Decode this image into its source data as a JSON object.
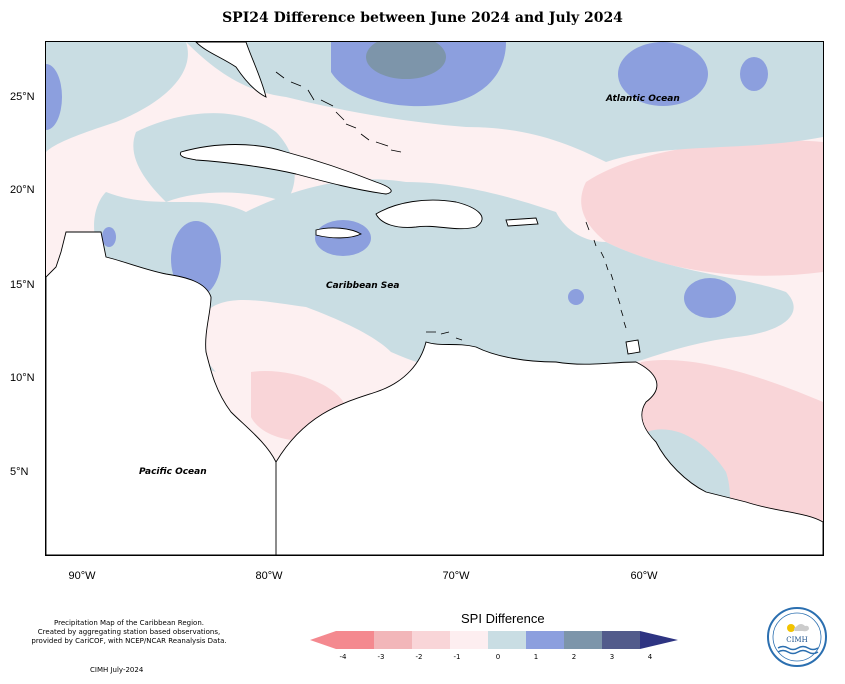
{
  "title": "SPI24 Difference between June 2024 and July 2024",
  "map": {
    "lat_labels": [
      "25°N",
      "20°N",
      "15°N",
      "10°N",
      "5°N"
    ],
    "lon_labels": [
      "90°W",
      "80°W",
      "70°W",
      "60°W"
    ],
    "ocean_labels": {
      "atlantic": "Atlantic Ocean",
      "caribbean": "Caribbean Sea",
      "pacific": "Pacific Ocean"
    },
    "colors": {
      "neg_4": "#f4898f",
      "neg_3": "#f2b6b9",
      "neg_2": "#f9d5d8",
      "neg_1": "#fdeef0",
      "pos_0": "#c9dde3",
      "pos_1": "#8c9fde",
      "pos_2": "#7d95aa",
      "pos_3": "#525b8b",
      "pos_4": "#2e3482",
      "land": "#ffffff",
      "coast": "#000000"
    }
  },
  "legend": {
    "title": "SPI Difference",
    "ticks": [
      "-4",
      "-3",
      "-2",
      "-1",
      "0",
      "1",
      "2",
      "3",
      "4"
    ]
  },
  "footnote": {
    "line1": "Precipitation Map of the Caribbean Region.",
    "line2": "Created by aggregating station based observations,",
    "line3": "provided by CariCOF, with NCEP/NCAR Reanalysis Data.",
    "credit": "CIMH July-2024"
  },
  "logo": {
    "text": "CIMH",
    "icon": "cimh-logo-icon"
  }
}
